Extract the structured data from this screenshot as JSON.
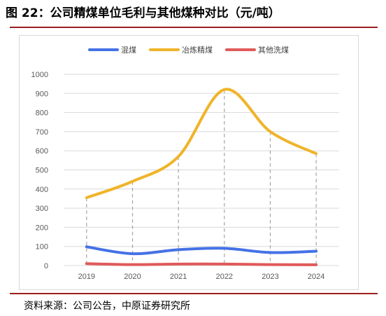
{
  "figure": {
    "title": "图 22：公司精煤单位毛利与其他煤种对比（元/吨）",
    "source": "资料来源：公司公告，中原证券研究所"
  },
  "colors": {
    "rule": "#9c1f1f",
    "grid": "#d9d9d9",
    "axis_text": "#595959"
  },
  "chart_data": {
    "type": "line",
    "categories": [
      "2019",
      "2020",
      "2021",
      "2022",
      "2023",
      "2024"
    ],
    "series": [
      {
        "name": "混煤",
        "color": "#4472e6",
        "values": [
          98,
          62,
          83,
          90,
          68,
          75
        ]
      },
      {
        "name": "冶炼精煤",
        "color": "#f0b429",
        "values": [
          355,
          440,
          570,
          920,
          700,
          585
        ]
      },
      {
        "name": "其他洗煤",
        "color": "#e05a5a",
        "values": [
          10,
          5,
          8,
          8,
          5,
          4
        ]
      }
    ],
    "ylim": [
      0,
      1000
    ],
    "yticks": [
      0,
      100,
      200,
      300,
      400,
      500,
      600,
      700,
      800,
      900,
      1000
    ],
    "grid": true,
    "drop_lines": true,
    "smooth": true,
    "legend_position": "top-center"
  }
}
